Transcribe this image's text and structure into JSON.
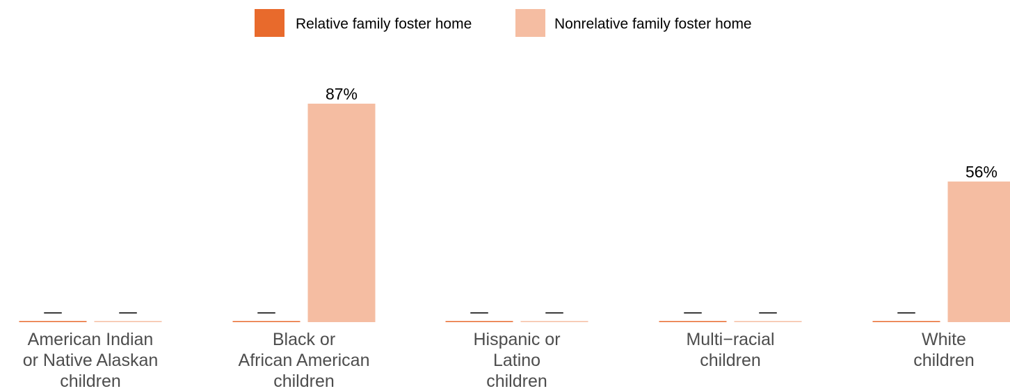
{
  "chart_data": {
    "type": "bar",
    "categories": [
      [
        "American Indian",
        "or Native Alaskan",
        "children"
      ],
      [
        "Black or",
        "African American",
        "children"
      ],
      [
        "Hispanic or",
        "Latino",
        "children"
      ],
      [
        "Multi−racial",
        "children"
      ],
      [
        "White",
        "children"
      ]
    ],
    "series": [
      {
        "name": "Relative family foster home",
        "color": "#E86A2C",
        "values": [
          null,
          null,
          null,
          null,
          null
        ],
        "labels": [
          "––",
          "––",
          "––",
          "––",
          "––"
        ]
      },
      {
        "name": "Nonrelative family foster home",
        "color": "#F5BDA2",
        "values": [
          null,
          87,
          null,
          null,
          56
        ],
        "labels": [
          "––",
          "87%",
          "––",
          "––",
          "56%"
        ]
      }
    ],
    "ylim": [
      0,
      87
    ],
    "grid": false,
    "legend_position": "top-center",
    "title": "",
    "xlabel": "",
    "ylabel": ""
  }
}
